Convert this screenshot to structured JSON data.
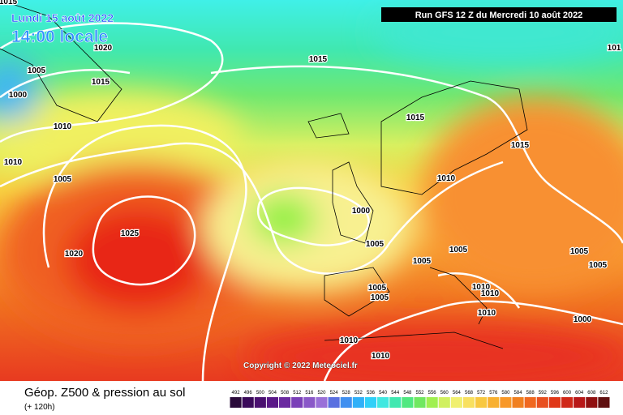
{
  "header": {
    "date": "Lundi 15 août 2022",
    "time": "14:00 locale",
    "run": "Run GFS 12 Z du Mercredi 10 août 2022"
  },
  "isobar_labels": [
    "1015",
    "1020",
    "1005",
    "1015",
    "1000",
    "1010",
    "1010",
    "1005",
    "1025",
    "1020",
    "1015",
    "1015",
    "1015",
    "1010",
    "1000",
    "1005",
    "1005",
    "1005",
    "1005",
    "1005",
    "1005",
    "1005",
    "1010",
    "1010",
    "1010",
    "1000",
    "1010",
    "1010",
    "101"
  ],
  "copyright": "Copyright © 2022 Meteociel.fr",
  "footer": {
    "title": "Géop. Z500 & pression au sol",
    "subtitle": "(+ 120h)"
  },
  "legend": {
    "labels": [
      492,
      496,
      500,
      504,
      508,
      512,
      516,
      520,
      524,
      528,
      532,
      536,
      540,
      544,
      548,
      552,
      556,
      560,
      564,
      568,
      572,
      576,
      580,
      584,
      588,
      592,
      596,
      600,
      604,
      608,
      612
    ],
    "colors": [
      "#2a0a3a",
      "#3a0a5a",
      "#4a1070",
      "#5a1888",
      "#6a2aa0",
      "#7a40b8",
      "#8a58c8",
      "#9a70d8",
      "#5a70e0",
      "#4090f0",
      "#30b0f8",
      "#30d0f8",
      "#40e8e0",
      "#40e8b0",
      "#50e880",
      "#70e860",
      "#a0f050",
      "#d0f060",
      "#f0f070",
      "#f8e060",
      "#f8c840",
      "#f8b030",
      "#f89828",
      "#f08020",
      "#f06820",
      "#e85020",
      "#e03818",
      "#d02818",
      "#b81818",
      "#901010",
      "#601010"
    ]
  }
}
